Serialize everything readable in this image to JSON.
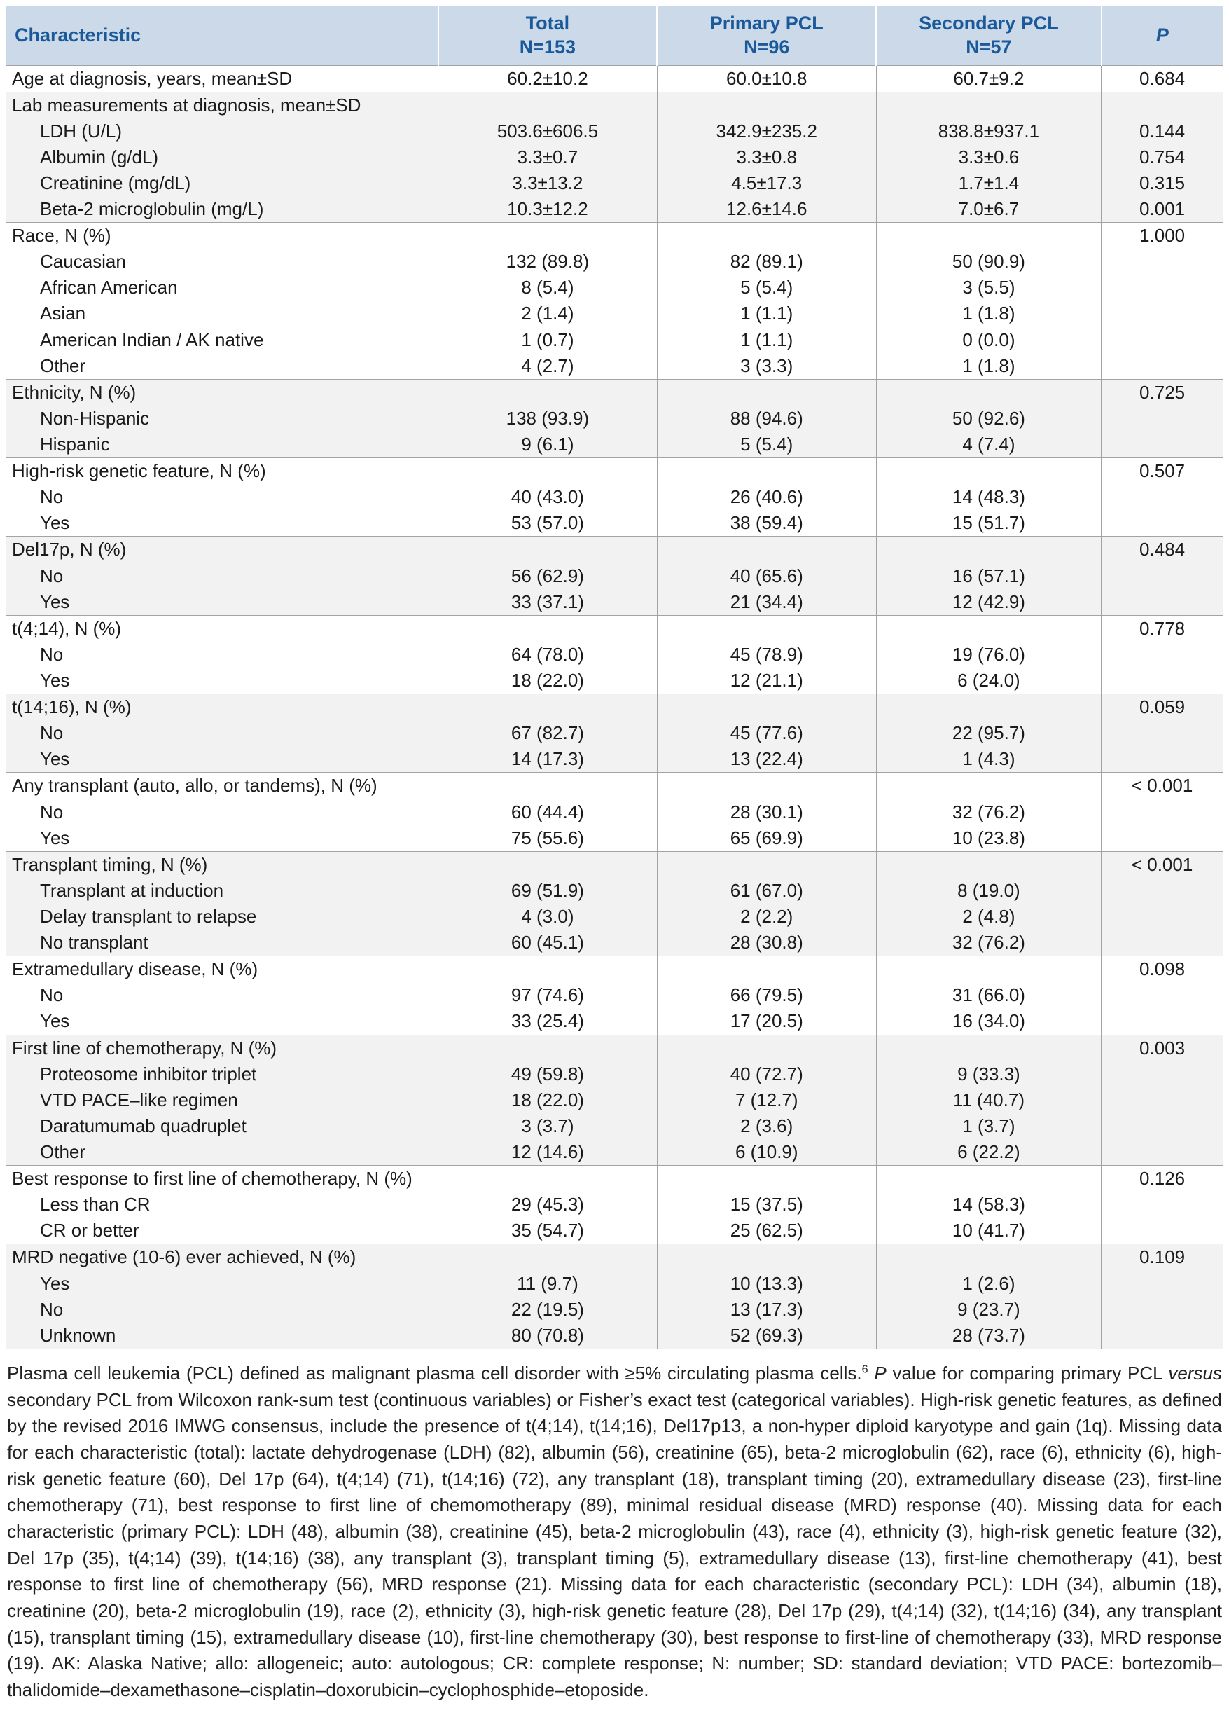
{
  "colors": {
    "header_bg": "#ccd9e8",
    "header_text": "#1b5a9a",
    "shade_bg": "#f2f2f2",
    "border": "#a0a4a8",
    "text": "#1a1a1a"
  },
  "table": {
    "header": {
      "characteristic": "Characteristic",
      "total": {
        "title": "Total",
        "n": "N=153"
      },
      "primary": {
        "title": "Primary PCL",
        "n": "N=96"
      },
      "secondary": {
        "title": "Secondary PCL",
        "n": "N=57"
      },
      "p": "P"
    },
    "groups": [
      {
        "rows": [
          {
            "label": "Age at diagnosis, years, mean±SD",
            "total": "60.2±10.2",
            "primary": "60.0±10.8",
            "secondary": "60.7±9.2",
            "p": "0.684"
          }
        ]
      },
      {
        "rows": [
          {
            "label": "Lab measurements at diagnosis, mean±SD"
          },
          {
            "label": "LDH (U/L)",
            "indent": true,
            "total": "503.6±606.5",
            "primary": "342.9±235.2",
            "secondary": "838.8±937.1",
            "p": "0.144"
          },
          {
            "label": "Albumin (g/dL)",
            "indent": true,
            "total": "3.3±0.7",
            "primary": "3.3±0.8",
            "secondary": "3.3±0.6",
            "p": "0.754"
          },
          {
            "label": "Creatinine (mg/dL)",
            "indent": true,
            "total": "3.3±13.2",
            "primary": "4.5±17.3",
            "secondary": "1.7±1.4",
            "p": "0.315"
          },
          {
            "label": "Beta-2 microglobulin (mg/L)",
            "indent": true,
            "total": "10.3±12.2",
            "primary": "12.6±14.6",
            "secondary": "7.0±6.7",
            "p": "0.001"
          }
        ]
      },
      {
        "rows": [
          {
            "label": "Race, N (%)",
            "p": "1.000"
          },
          {
            "label": "Caucasian",
            "indent": true,
            "total": "132 (89.8)",
            "primary": "82 (89.1)",
            "secondary": "50 (90.9)"
          },
          {
            "label": "African American",
            "indent": true,
            "total": "8 (5.4)",
            "primary": "5 (5.4)",
            "secondary": "3 (5.5)"
          },
          {
            "label": "Asian",
            "indent": true,
            "total": "2 (1.4)",
            "primary": "1 (1.1)",
            "secondary": "1 (1.8)"
          },
          {
            "label": "American Indian / AK native",
            "indent": true,
            "total": "1 (0.7)",
            "primary": "1 (1.1)",
            "secondary": "0 (0.0)"
          },
          {
            "label": "Other",
            "indent": true,
            "total": "4 (2.7)",
            "primary": "3 (3.3)",
            "secondary": "1 (1.8)"
          }
        ]
      },
      {
        "rows": [
          {
            "label": "Ethnicity, N (%)",
            "p": "0.725"
          },
          {
            "label": "Non-Hispanic",
            "indent": true,
            "total": "138 (93.9)",
            "primary": "88 (94.6)",
            "secondary": "50 (92.6)"
          },
          {
            "label": "Hispanic",
            "indent": true,
            "total": "9 (6.1)",
            "primary": "5 (5.4)",
            "secondary": "4 (7.4)"
          }
        ]
      },
      {
        "rows": [
          {
            "label": "High-risk genetic feature, N (%)",
            "p": "0.507"
          },
          {
            "label": "No",
            "indent": true,
            "total": "40 (43.0)",
            "primary": "26 (40.6)",
            "secondary": "14 (48.3)"
          },
          {
            "label": "Yes",
            "indent": true,
            "total": "53 (57.0)",
            "primary": "38 (59.4)",
            "secondary": "15 (51.7)"
          }
        ]
      },
      {
        "rows": [
          {
            "label": "Del17p, N (%)",
            "p": "0.484"
          },
          {
            "label": "No",
            "indent": true,
            "total": "56 (62.9)",
            "primary": "40 (65.6)",
            "secondary": "16 (57.1)"
          },
          {
            "label": "Yes",
            "indent": true,
            "total": "33 (37.1)",
            "primary": "21 (34.4)",
            "secondary": "12 (42.9)"
          }
        ]
      },
      {
        "rows": [
          {
            "label": "t(4;14), N (%)",
            "p": "0.778"
          },
          {
            "label": "No",
            "indent": true,
            "total": "64 (78.0)",
            "primary": "45 (78.9)",
            "secondary": "19 (76.0)"
          },
          {
            "label": "Yes",
            "indent": true,
            "total": "18 (22.0)",
            "primary": "12 (21.1)",
            "secondary": "6 (24.0)"
          }
        ]
      },
      {
        "rows": [
          {
            "label": "t(14;16), N (%)",
            "p": "0.059"
          },
          {
            "label": "No",
            "indent": true,
            "total": "67 (82.7)",
            "primary": "45 (77.6)",
            "secondary": "22 (95.7)"
          },
          {
            "label": "Yes",
            "indent": true,
            "total": "14 (17.3)",
            "primary": "13 (22.4)",
            "secondary": "1 (4.3)"
          }
        ]
      },
      {
        "rows": [
          {
            "label": "Any transplant (auto, allo, or tandems), N (%)",
            "p": "< 0.001"
          },
          {
            "label": "No",
            "indent": true,
            "total": "60 (44.4)",
            "primary": "28 (30.1)",
            "secondary": "32 (76.2)"
          },
          {
            "label": "Yes",
            "indent": true,
            "total": "75 (55.6)",
            "primary": "65 (69.9)",
            "secondary": "10 (23.8)"
          }
        ]
      },
      {
        "rows": [
          {
            "label": "Transplant timing, N (%)",
            "p": "< 0.001"
          },
          {
            "label": "Transplant at induction",
            "indent": true,
            "total": "69 (51.9)",
            "primary": "61 (67.0)",
            "secondary": "8 (19.0)"
          },
          {
            "label": "Delay transplant to relapse",
            "indent": true,
            "total": "4 (3.0)",
            "primary": "2 (2.2)",
            "secondary": "2 (4.8)"
          },
          {
            "label": "No transplant",
            "indent": true,
            "total": "60 (45.1)",
            "primary": "28 (30.8)",
            "secondary": "32 (76.2)"
          }
        ]
      },
      {
        "rows": [
          {
            "label": "Extramedullary disease, N (%)",
            "p": "0.098"
          },
          {
            "label": "No",
            "indent": true,
            "total": "97 (74.6)",
            "primary": "66 (79.5)",
            "secondary": "31 (66.0)"
          },
          {
            "label": "Yes",
            "indent": true,
            "total": "33 (25.4)",
            "primary": "17 (20.5)",
            "secondary": "16 (34.0)"
          }
        ]
      },
      {
        "rows": [
          {
            "label": "First line of chemotherapy, N (%)",
            "p": "0.003"
          },
          {
            "label": "Proteosome inhibitor triplet",
            "indent": true,
            "total": "49 (59.8)",
            "primary": "40 (72.7)",
            "secondary": "9 (33.3)"
          },
          {
            "label": "VTD PACE–like regimen",
            "indent": true,
            "total": "18 (22.0)",
            "primary": "7 (12.7)",
            "secondary": "11 (40.7)"
          },
          {
            "label": "Daratumumab quadruplet",
            "indent": true,
            "total": "3 (3.7)",
            "primary": "2 (3.6)",
            "secondary": "1 (3.7)"
          },
          {
            "label": "Other",
            "indent": true,
            "total": "12 (14.6)",
            "primary": "6 (10.9)",
            "secondary": "6 (22.2)"
          }
        ]
      },
      {
        "rows": [
          {
            "label": "Best response to first line of chemotherapy, N (%)",
            "p": "0.126"
          },
          {
            "label": "Less than CR",
            "indent": true,
            "total": "29 (45.3)",
            "primary": "15 (37.5)",
            "secondary": "14 (58.3)"
          },
          {
            "label": "CR or better",
            "indent": true,
            "total": "35 (54.7)",
            "primary": "25 (62.5)",
            "secondary": "10 (41.7)"
          }
        ]
      },
      {
        "rows": [
          {
            "label": "MRD negative (10-6) ever achieved, N (%)",
            "p": "0.109"
          },
          {
            "label": "Yes",
            "indent": true,
            "total": "11 (9.7)",
            "primary": "10 (13.3)",
            "secondary": "1 (2.6)"
          },
          {
            "label": "No",
            "indent": true,
            "total": "22 (19.5)",
            "primary": "13 (17.3)",
            "secondary": "9 (23.7)"
          },
          {
            "label": "Unknown",
            "indent": true,
            "total": "80 (70.8)",
            "primary": "52 (69.3)",
            "secondary": "28 (73.7)"
          }
        ]
      }
    ]
  },
  "footnote": {
    "segments": [
      {
        "text": "Plasma cell leukemia (PCL) defined as malignant plasma cell disorder with ≥5% circulating plasma cells."
      },
      {
        "text": "6",
        "sup": true
      },
      {
        "text": " "
      },
      {
        "text": "P",
        "italic": true
      },
      {
        "text": " value for comparing primary PCL "
      },
      {
        "text": "versus",
        "italic": true
      },
      {
        "text": " secondary PCL from Wilcoxon rank-sum test (continuous variables) or Fisher’s exact test (categorical variables). High-risk genetic features, as defined by the revised 2016 IMWG consensus, include the presence of t(4;14), t(14;16), Del17p13, a non-hyper diploid karyotype and gain (1q). Missing data for each characteristic (total): lactate dehydrogenase (LDH) (82), albumin (56), creatinine (65), beta-2 microglobulin (62), race (6), ethnicity (6), high-risk genetic feature (60), Del 17p (64), t(4;14) (71), t(14;16) (72), any transplant (18), transplant timing (20), extramedullary disease (23), first-line chemotherapy (71), best response to first line of chemomotherapy (89), minimal residual disease (MRD) response (40). Missing data for each characteristic (primary PCL): LDH (48), albumin (38), creatinine (45), beta-2 microglobulin (43), race (4), ethnicity (3), high-risk genetic feature (32), Del 17p (35), t(4;14) (39), t(14;16) (38), any transplant (3), transplant timing (5), extramedullary disease (13), first-line chemotherapy (41), best response to first line of chemotherapy (56), MRD response (21). Missing data for each characteristic (secondary PCL): LDH (34), albumin (18), creatinine (20), beta-2 microglobulin (19), race (2), ethnicity (3), high-risk genetic feature (28), Del 17p (29), t(4;14) (32), t(14;16) (34), any transplant (15), transplant timing (15), extramedullary disease (10), first-line chemotherapy (30), best response to first-line of chemotherapy (33), MRD response (19). AK: Alaska Native; allo: allogeneic; auto: autologous; CR: complete response; N: number; SD: standard deviation; VTD PACE: bortezomib–thalidomide–dexamethasone–cisplatin–doxorubicin–cyclophosphide–etoposide."
      }
    ]
  }
}
